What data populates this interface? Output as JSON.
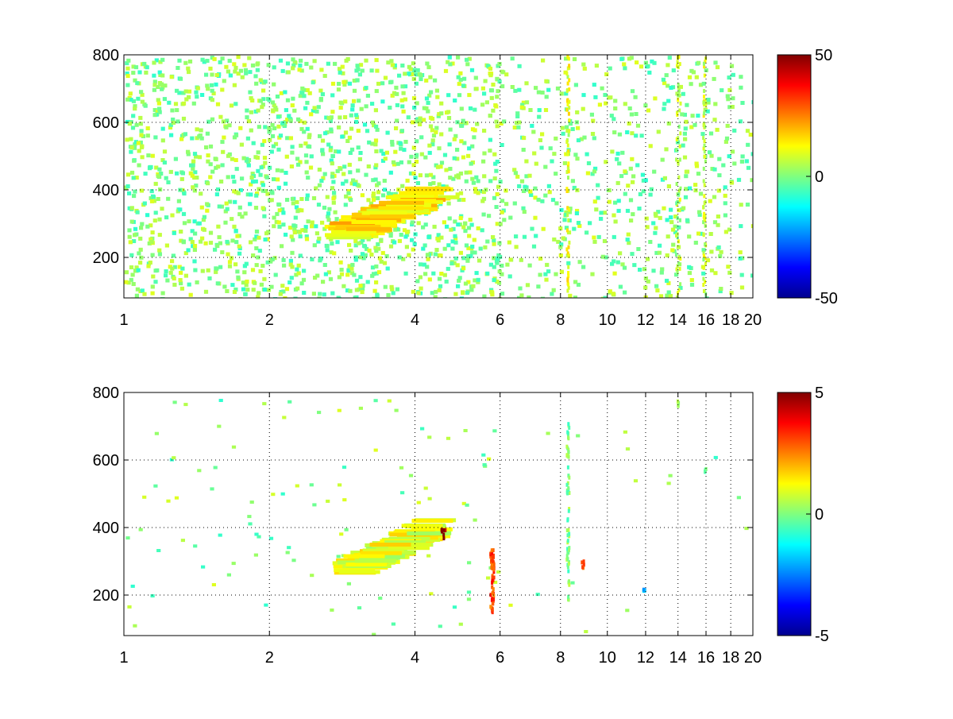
{
  "chart_data": [
    {
      "type": "heatmap",
      "title": "",
      "xlabel": "",
      "ylabel": "",
      "xlim": [
        1,
        20
      ],
      "ylim": [
        80,
        800
      ],
      "xscale": "log",
      "x_ticks": [
        1,
        2,
        4,
        6,
        8,
        10,
        12,
        14,
        16,
        18,
        20
      ],
      "x_tick_labels": [
        "1",
        "2",
        "4",
        "6",
        "8",
        "10",
        "12",
        "14",
        "16",
        "18",
        "20"
      ],
      "y_ticks": [
        200,
        400,
        600,
        800
      ],
      "y_tick_labels": [
        "200",
        "400",
        "600",
        "800"
      ],
      "grid": true,
      "colormap": "jet",
      "colorbar": {
        "range": [
          -50,
          50
        ],
        "ticks": [
          50,
          0,
          -50
        ],
        "tick_labels": [
          "50",
          "0",
          "-50"
        ],
        "placement": "right"
      },
      "features": [
        {
          "x_range": [
            2.6,
            4.0
          ],
          "y_range": [
            280,
            400
          ],
          "value": 15,
          "kind": "diagonal streak"
        },
        {
          "x_range": [
            8.2,
            8.3
          ],
          "y_range": [
            80,
            800
          ],
          "value": 10,
          "kind": "vertical band"
        },
        {
          "x_range": [
            13.8,
            14.1
          ],
          "y_range": [
            80,
            800
          ],
          "value": 5,
          "kind": "vertical band"
        },
        {
          "x_range": [
            15.7,
            15.9
          ],
          "y_range": [
            80,
            800
          ],
          "value": 8,
          "kind": "vertical band"
        }
      ]
    },
    {
      "type": "heatmap",
      "title": "",
      "xlabel": "",
      "ylabel": "",
      "xlim": [
        1,
        20
      ],
      "ylim": [
        80,
        800
      ],
      "xscale": "log",
      "x_ticks": [
        1,
        2,
        4,
        6,
        8,
        10,
        12,
        14,
        16,
        18,
        20
      ],
      "x_tick_labels": [
        "1",
        "2",
        "4",
        "6",
        "8",
        "10",
        "12",
        "14",
        "16",
        "18",
        "20"
      ],
      "y_ticks": [
        200,
        400,
        600,
        800
      ],
      "y_tick_labels": [
        "200",
        "400",
        "600",
        "800"
      ],
      "grid": true,
      "colormap": "jet",
      "colorbar": {
        "range": [
          -5,
          5
        ],
        "ticks": [
          5,
          0,
          -5
        ],
        "tick_labels": [
          "5",
          "0",
          "-5"
        ],
        "placement": "right"
      },
      "features": [
        {
          "x_range": [
            2.7,
            4.0
          ],
          "y_range": [
            280,
            410
          ],
          "value": 1,
          "kind": "diagonal streak"
        },
        {
          "x_range": [
            8.2,
            8.3
          ],
          "y_range": [
            190,
            720
          ],
          "value": 0,
          "kind": "vertical band"
        },
        {
          "x_range": [
            5.7,
            5.8
          ],
          "y_range": [
            150,
            350
          ],
          "value": 3,
          "kind": "vertical band"
        },
        {
          "x_range": [
            4.5,
            4.6
          ],
          "y_range": [
            370,
            400
          ],
          "value": 5,
          "kind": "cluster"
        },
        {
          "x_range": [
            8.8,
            8.9
          ],
          "y_range": [
            280,
            310
          ],
          "value": 3,
          "kind": "cluster"
        },
        {
          "x_range": [
            13.9,
            14.0
          ],
          "y_range": [
            760,
            780
          ],
          "value": 0,
          "kind": "cluster"
        },
        {
          "x_range": [
            15.8,
            15.9
          ],
          "y_range": [
            570,
            580
          ],
          "value": 0,
          "kind": "cluster"
        },
        {
          "x_range": [
            11.8,
            11.9
          ],
          "y_range": [
            215,
            225
          ],
          "value": -2,
          "kind": "cluster"
        }
      ]
    }
  ]
}
